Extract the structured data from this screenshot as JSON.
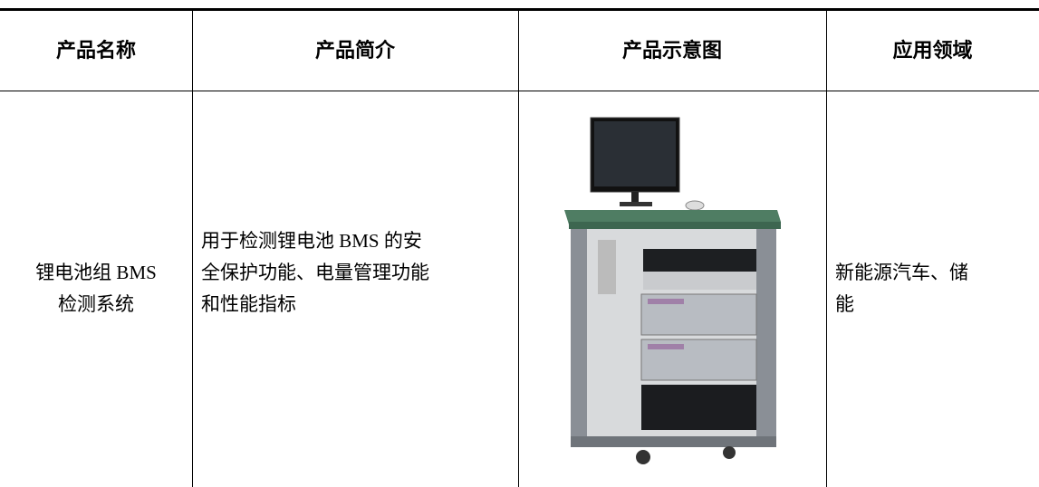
{
  "table": {
    "header": [
      "产品名称",
      "产品简介",
      "产品示意图",
      "应用领域"
    ],
    "rows": [
      [
        [
          "锂电池组 BMS",
          "检测系统"
        ],
        [
          "用于检测锂电池 BMS 的安",
          "全保护功能、电量管理功能",
          "和性能指标"
        ],
        [],
        [
          "新能源汽车、储",
          "能"
        ]
      ]
    ]
  }
}
